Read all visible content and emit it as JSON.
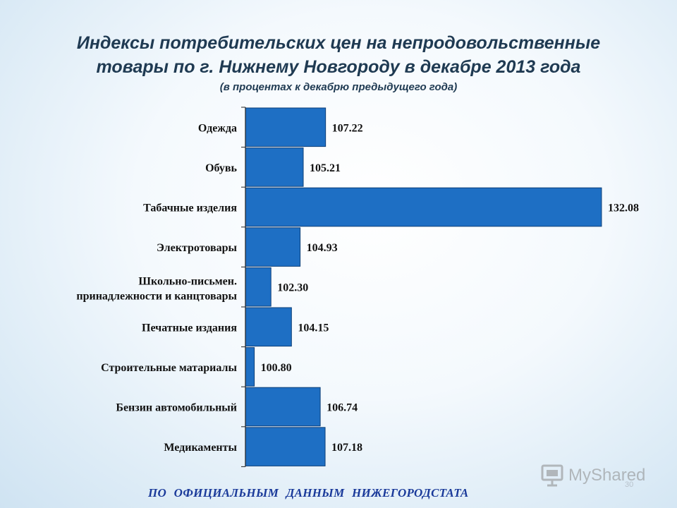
{
  "chart_data": {
    "type": "bar",
    "orientation": "horizontal",
    "title": "Индексы потребительских цен на непродовольственные товары по г. Нижнему Новгороду в декабре 2013 года",
    "subtitle": "(в процентах к декабрю предыдущего года)",
    "categories": [
      "Одежда",
      "Обувь",
      "Табачные изделия",
      "Электротовары",
      "Школьно-письмен. принадлежности и канцтовары",
      "Печатные издания",
      "Строительные матариалы",
      "Бензин автомобильный",
      "Медикаменты"
    ],
    "values": [
      107.22,
      105.21,
      132.08,
      104.93,
      102.3,
      104.15,
      100.8,
      106.74,
      107.18
    ],
    "value_labels": [
      "107.22",
      "105.21",
      "132.08",
      "104.93",
      "102.30",
      "104.15",
      "100.80",
      "106.74",
      "107.18"
    ],
    "xlim": [
      100,
      132.4
    ],
    "grid": false,
    "legend": "none",
    "bar_color": "#1e6fc4"
  },
  "header": {
    "title_line1": "Индексы потребительских цен на непродовольственные",
    "title_line2": "товары по г. Нижнему Новгороду в декабре 2013 года",
    "subtitle": "(в процентах к декабрю предыдущего года)"
  },
  "footer": {
    "source": "ПО ОФИЦИАЛЬНЫМ ДАННЫМ НИЖЕГОРОДСТАТА",
    "page_number": "30"
  },
  "watermark": {
    "text": "MyShared",
    "icon": "presentation-icon"
  }
}
